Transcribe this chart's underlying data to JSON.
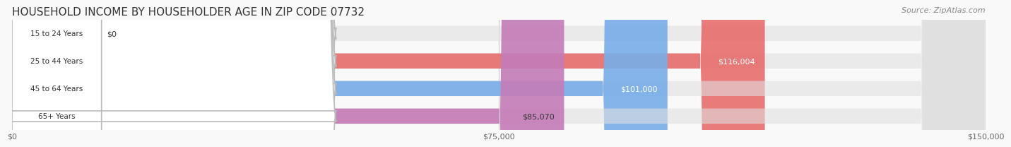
{
  "title": "HOUSEHOLD INCOME BY HOUSEHOLDER AGE IN ZIP CODE 07732",
  "source": "Source: ZipAtlas.com",
  "categories": [
    "15 to 24 Years",
    "25 to 44 Years",
    "45 to 64 Years",
    "65+ Years"
  ],
  "values": [
    0,
    116004,
    101000,
    85070
  ],
  "labels": [
    "$0",
    "$116,004",
    "$101,000",
    "$85,070"
  ],
  "bar_colors": [
    "#f5c97a",
    "#e87070",
    "#7aaee8",
    "#c47db8"
  ],
  "bar_bg_color": "#e8e8e8",
  "label_colors": [
    "#333333",
    "#ffffff",
    "#ffffff",
    "#333333"
  ],
  "xlim": [
    0,
    150000
  ],
  "xticks": [
    0,
    75000,
    150000
  ],
  "xticklabels": [
    "$0",
    "$75,000",
    "$150,000"
  ],
  "title_fontsize": 11,
  "source_fontsize": 8,
  "bar_height": 0.55,
  "background_color": "#f9f9f9",
  "bar_bg_alpha": 0.5
}
